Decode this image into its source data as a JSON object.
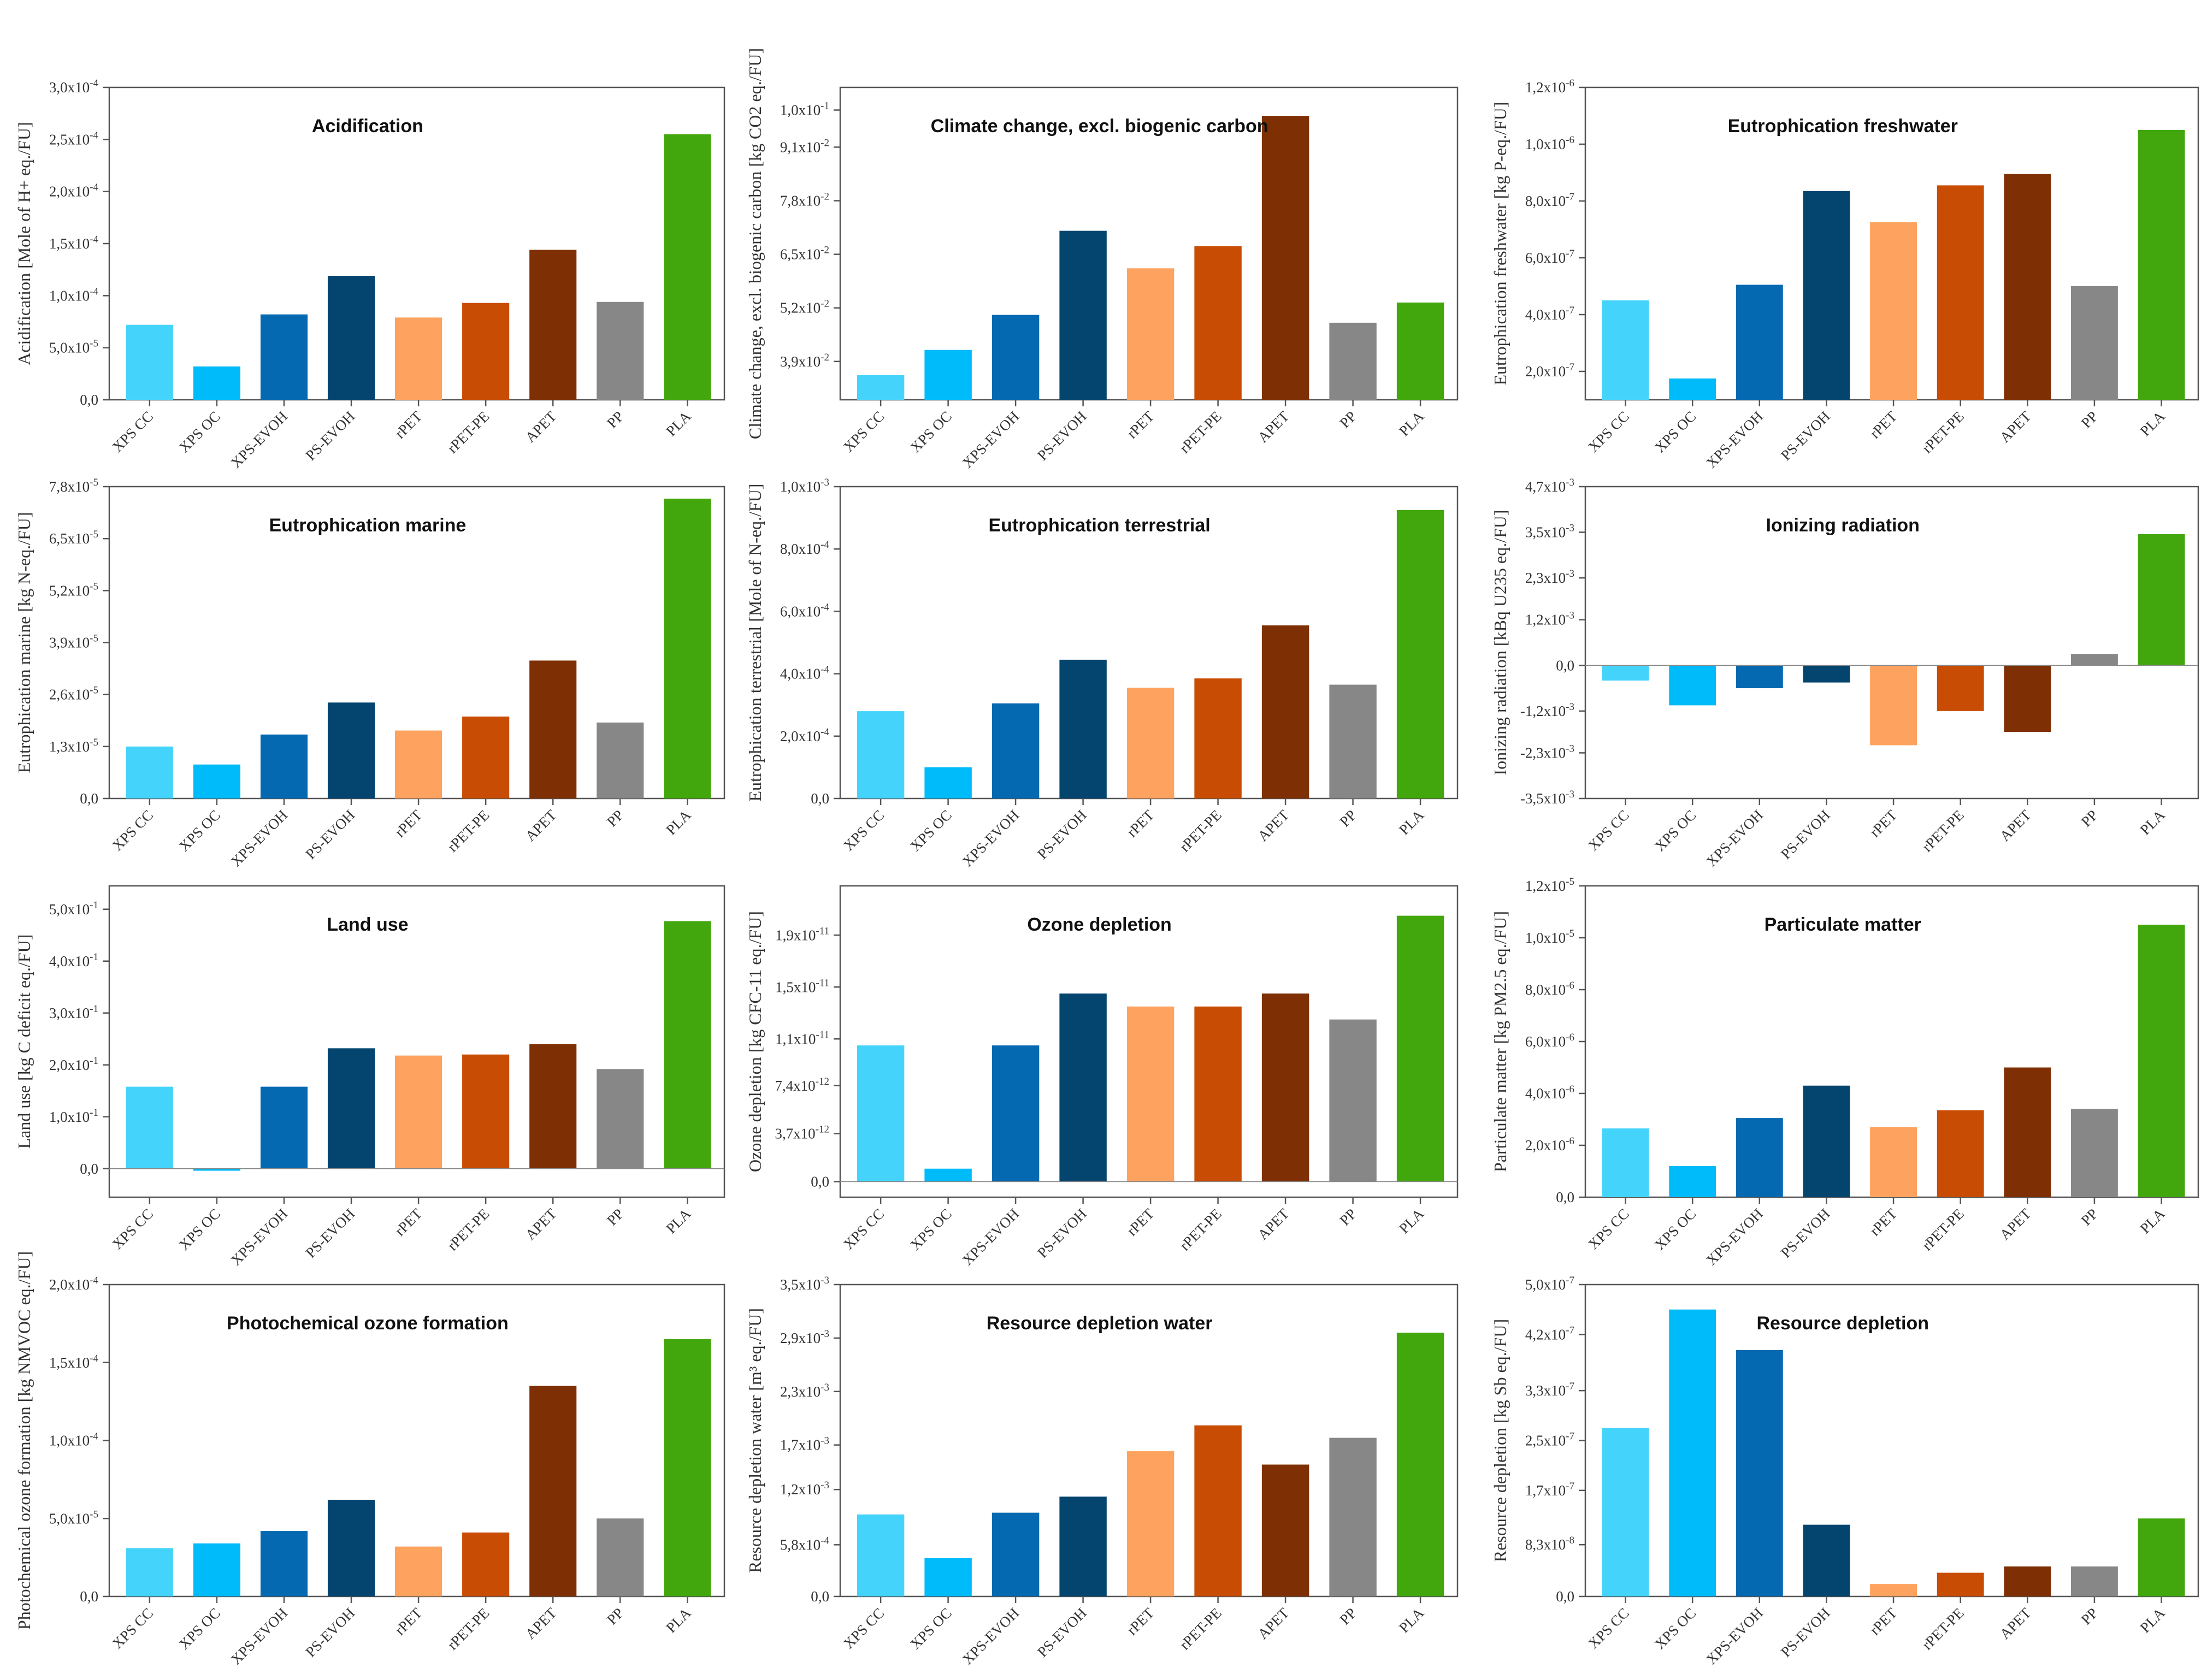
{
  "colors": {
    "XPS CC": "#44d4fb",
    "XPS OC": "#00bbf9",
    "XPS-EVOH": "#0569b1",
    "PS-EVOH": "#04456f",
    "rPET": "#fda35f",
    "rPET-PE": "#c84c03",
    "APET": "#7e3004",
    "PP": "#878787",
    "PLA": "#42a70c"
  },
  "chart_data": [
    {
      "type": "bar",
      "title": "Acidification",
      "ylabel": "Acidification [Mole of H+ eq./FU]",
      "categories": [
        "XPS CC",
        "XPS OC",
        "XPS-EVOH",
        "PS-EVOH",
        "rPET",
        "rPET-PE",
        "APET",
        "PP",
        "PLA"
      ],
      "values": [
        7.2e-05,
        3.2e-05,
        8.2e-05,
        0.000119,
        7.9e-05,
        9.3e-05,
        0.000144,
        9.4e-05,
        0.000255
      ],
      "ylim": [
        0,
        0.0003
      ],
      "ticks": [
        0,
        5e-05,
        0.0001,
        0.00015,
        0.0002,
        0.00025,
        0.0003
      ],
      "tick_labels": [
        "0,0",
        "5,0x10-5",
        "1,0x10-4",
        "1,5x10-4",
        "2,0x10-4",
        "2,5x10-4",
        "3,0x10-4"
      ]
    },
    {
      "type": "bar",
      "title": "Climate change, excl. biogenic carbon",
      "ylabel": "Climate change, excl. biogenic carbon [kg CO2 eq./FU]",
      "categories": [
        "XPS CC",
        "XPS OC",
        "XPS-EVOH",
        "PS-EVOH",
        "rPET",
        "rPET-PE",
        "APET",
        "PP",
        "PLA"
      ],
      "values": [
        0.0357,
        0.0418,
        0.0503,
        0.0707,
        0.0616,
        0.067,
        0.0986,
        0.0484,
        0.0533
      ],
      "ylim": [
        0.0297,
        0.1055
      ],
      "ticks": [
        0.039,
        0.052,
        0.065,
        0.078,
        0.091,
        0.1
      ],
      "tick_labels": [
        "3,9x10-2",
        "5,2x10-2",
        "6,5x10-2",
        "7,8x10-2",
        "9,1x10-2",
        "1,0x10-1"
      ]
    },
    {
      "type": "bar",
      "title": "Eutrophication freshwater",
      "ylabel": "Eutrophication freshwater [kg P-eq./FU]",
      "categories": [
        "XPS CC",
        "XPS OC",
        "XPS-EVOH",
        "PS-EVOH",
        "rPET",
        "rPET-PE",
        "APET",
        "PP",
        "PLA"
      ],
      "values": [
        4.5e-07,
        1.75e-07,
        5.05e-07,
        8.35e-07,
        7.25e-07,
        8.55e-07,
        8.95e-07,
        5e-07,
        1.05e-06
      ],
      "ylim": [
        1e-07,
        1.2e-06
      ],
      "ticks": [
        2e-07,
        4e-07,
        6e-07,
        8e-07,
        1e-06,
        1.2e-06
      ],
      "tick_labels": [
        "2,0x10-7",
        "4,0x10-7",
        "6,0x10-7",
        "8,0x10-7",
        "1,0x10-6",
        "1,2x10-6"
      ]
    },
    {
      "type": "bar",
      "title": "Eutrophication marine",
      "ylabel": "Eutrophication marine [kg N-eq./FU]",
      "categories": [
        "XPS CC",
        "XPS OC",
        "XPS-EVOH",
        "PS-EVOH",
        "rPET",
        "rPET-PE",
        "APET",
        "PP",
        "PLA"
      ],
      "values": [
        1.3e-05,
        8.5e-06,
        1.6e-05,
        2.4e-05,
        1.7e-05,
        2.05e-05,
        3.45e-05,
        1.9e-05,
        7.5e-05
      ],
      "ylim": [
        0,
        7.8e-05
      ],
      "ticks": [
        0,
        1.3e-05,
        2.6e-05,
        3.9e-05,
        5.2e-05,
        6.5e-05,
        7.8e-05
      ],
      "tick_labels": [
        "0,0",
        "1,3x10-5",
        "2,6x10-5",
        "3,9x10-5",
        "5,2x10-5",
        "6,5x10-5",
        "7,8x10-5"
      ]
    },
    {
      "type": "bar",
      "title": "Eutrophication terrestrial",
      "ylabel": "Eutrophication terrestrial [Mole of N-eq./FU]",
      "categories": [
        "XPS CC",
        "XPS OC",
        "XPS-EVOH",
        "PS-EVOH",
        "rPET",
        "rPET-PE",
        "APET",
        "PP",
        "PLA"
      ],
      "values": [
        0.00028,
        0.0001,
        0.000305,
        0.000445,
        0.000355,
        0.000385,
        0.000555,
        0.000365,
        0.000925
      ],
      "ylim": [
        0,
        0.001
      ],
      "ticks": [
        0,
        0.0002,
        0.0004,
        0.0006,
        0.0008,
        0.001
      ],
      "tick_labels": [
        "0,0",
        "2,0x10-4",
        "4,0x10-4",
        "6,0x10-4",
        "8,0x10-4",
        "1,0x10-3"
      ]
    },
    {
      "type": "bar",
      "title": "Ionizing radiation",
      "ylabel": "Ionizing radiation [kBq U235 eq./FU]",
      "categories": [
        "XPS CC",
        "XPS OC",
        "XPS-EVOH",
        "PS-EVOH",
        "rPET",
        "rPET-PE",
        "APET",
        "PP",
        "PLA"
      ],
      "values": [
        -0.0004,
        -0.00105,
        -0.0006,
        -0.00045,
        -0.0021,
        -0.0012,
        -0.00175,
        0.0003,
        0.00345
      ],
      "ylim": [
        -0.0035,
        0.0047
      ],
      "ticks": [
        -0.0035,
        -0.0023,
        -0.0012,
        0,
        0.0012,
        0.0023,
        0.0035,
        0.0047
      ],
      "tick_labels": [
        "-3,5x10-3",
        "-2,3x10-3",
        "-1,2x10-3",
        "0,0",
        "1,2x10-3",
        "2,3x10-3",
        "3,5x10-3",
        "4,7x10-3"
      ]
    },
    {
      "type": "bar",
      "title": "Land use",
      "ylabel": "Land use [kg C deficit eq./FU]",
      "categories": [
        "XPS CC",
        "XPS OC",
        "XPS-EVOH",
        "PS-EVOH",
        "rPET",
        "rPET-PE",
        "APET",
        "PP",
        "PLA"
      ],
      "values": [
        0.158,
        -0.004,
        0.158,
        0.232,
        0.218,
        0.22,
        0.24,
        0.192,
        0.477
      ],
      "ylim": [
        -0.055,
        0.545
      ],
      "ticks": [
        0,
        0.1,
        0.2,
        0.3,
        0.4,
        0.5
      ],
      "tick_labels": [
        "0,0",
        "1,0x10-1",
        "2,0x10-1",
        "3,0x10-1",
        "4,0x10-1",
        "5,0x10-1"
      ]
    },
    {
      "type": "bar",
      "title": "Ozone depletion",
      "ylabel": "Ozone depletion [kg CFC-11 eq./FU]",
      "categories": [
        "XPS CC",
        "XPS OC",
        "XPS-EVOH",
        "PS-EVOH",
        "rPET",
        "rPET-PE",
        "APET",
        "PP",
        "PLA"
      ],
      "values": [
        1.05e-11,
        1e-12,
        1.05e-11,
        1.45e-11,
        1.35e-11,
        1.35e-11,
        1.45e-11,
        1.25e-11,
        2.05e-11
      ],
      "ylim": [
        -1.2e-12,
        2.28e-11
      ],
      "ticks": [
        0,
        3.7e-12,
        7.4e-12,
        1.1e-11,
        1.5e-11,
        1.9e-11
      ],
      "tick_labels": [
        "0,0",
        "3,7x10-12",
        "7,4x10-12",
        "1,1x10-11",
        "1,5x10-11",
        "1,9x10-11"
      ]
    },
    {
      "type": "bar",
      "title": "Particulate matter",
      "ylabel": "Particulate matter [kg PM2.5 eq./FU]",
      "categories": [
        "XPS CC",
        "XPS OC",
        "XPS-EVOH",
        "PS-EVOH",
        "rPET",
        "rPET-PE",
        "APET",
        "PP",
        "PLA"
      ],
      "values": [
        2.65e-06,
        1.2e-06,
        3.05e-06,
        4.3e-06,
        2.7e-06,
        3.35e-06,
        5e-06,
        3.4e-06,
        1.05e-05
      ],
      "ylim": [
        0,
        1.2e-05
      ],
      "ticks": [
        0,
        2e-06,
        4e-06,
        6e-06,
        8e-06,
        1e-05,
        1.2e-05
      ],
      "tick_labels": [
        "0,0",
        "2,0x10-6",
        "4,0x10-6",
        "6,0x10-6",
        "8,0x10-6",
        "1,0x10-5",
        "1,2x10-5"
      ]
    },
    {
      "type": "bar",
      "title": "Photochemical ozone formation",
      "ylabel": "Photochemical ozone formation [kg NMVOC eq./FU]",
      "categories": [
        "XPS CC",
        "XPS OC",
        "XPS-EVOH",
        "PS-EVOH",
        "rPET",
        "rPET-PE",
        "APET",
        "PP",
        "PLA"
      ],
      "values": [
        3.1e-05,
        3.4e-05,
        4.2e-05,
        6.2e-05,
        3.2e-05,
        4.1e-05,
        0.000135,
        5e-05,
        0.000165
      ],
      "ylim": [
        0,
        0.0002
      ],
      "ticks": [
        0,
        5e-05,
        0.0001,
        0.00015,
        0.0002
      ],
      "tick_labels": [
        "0,0",
        "5,0x10-5",
        "1,0x10-4",
        "1,5x10-4",
        "2,0x10-4"
      ]
    },
    {
      "type": "bar",
      "title": "Resource depletion water",
      "ylabel": "Resource depletion water [m³ eq./FU]",
      "categories": [
        "XPS CC",
        "XPS OC",
        "XPS-EVOH",
        "PS-EVOH",
        "rPET",
        "rPET-PE",
        "APET",
        "PP",
        "PLA"
      ],
      "values": [
        0.00092,
        0.00043,
        0.00094,
        0.00112,
        0.00163,
        0.00192,
        0.00148,
        0.00178,
        0.00296
      ],
      "ylim": [
        0,
        0.0035
      ],
      "ticks": [
        0,
        0.00058,
        0.0012,
        0.0017,
        0.0023,
        0.0029,
        0.0035
      ],
      "tick_labels": [
        "0,0",
        "5,8x10-4",
        "1,2x10-3",
        "1,7x10-3",
        "2,3x10-3",
        "2,9x10-3",
        "3,5x10-3"
      ]
    },
    {
      "type": "bar",
      "title": "Resource depletion",
      "ylabel": "Resource depletion [kg Sb eq./FU]",
      "categories": [
        "XPS CC",
        "XPS OC",
        "XPS-EVOH",
        "PS-EVOH",
        "rPET",
        "rPET-PE",
        "APET",
        "PP",
        "PLA"
      ],
      "values": [
        2.7e-07,
        4.6e-07,
        3.95e-07,
        1.15e-07,
        2e-08,
        3.8e-08,
        4.8e-08,
        4.8e-08,
        1.25e-07
      ],
      "ylim": [
        0,
        5e-07
      ],
      "ticks": [
        0,
        8.3e-08,
        1.7e-07,
        2.5e-07,
        3.3e-07,
        4.2e-07,
        5e-07
      ],
      "tick_labels": [
        "0,0",
        "8,3x10-8",
        "1,7x10-7",
        "2,5x10-7",
        "3,3x10-7",
        "4,2x10-7",
        "5,0x10-7"
      ]
    }
  ]
}
